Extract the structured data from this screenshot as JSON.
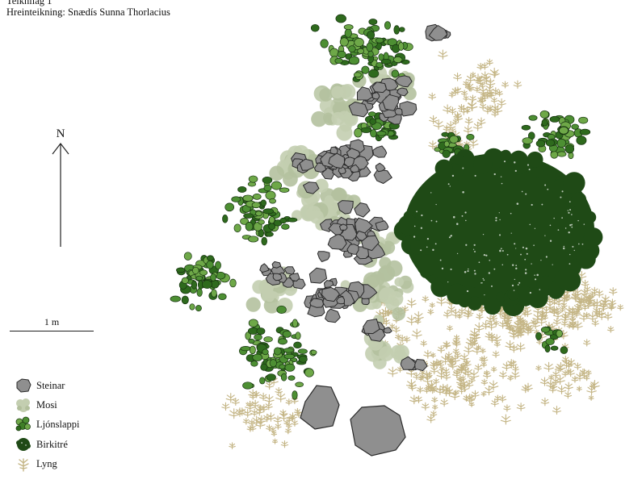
{
  "header": {
    "lines": [
      "Teiknilag 1",
      "Hreinteikning: Snædís Sunna Thorlacius"
    ]
  },
  "compass": {
    "north_label": "N"
  },
  "scale": {
    "label": "1 m"
  },
  "legend": {
    "items": [
      {
        "key": "stone",
        "label": "Steinar",
        "color": "#8f8f8f"
      },
      {
        "key": "moss",
        "label": "Mosi",
        "color": "#c3ceb0"
      },
      {
        "key": "clubmoss",
        "label": "Ljónslappi",
        "color": "#3f8a2a"
      },
      {
        "key": "birch",
        "label": "Birkitré",
        "color": "#1f4a16"
      },
      {
        "key": "heather",
        "label": "Lyng",
        "color": "#c4b585"
      }
    ]
  },
  "colors": {
    "stone_fill": "#8f8f8f",
    "stone_stroke": "#2a2a2a",
    "moss": "#c3ceb0",
    "clubmoss_light": "#6ea848",
    "clubmoss_dark": "#2e6a1d",
    "birch": "#1f4a16",
    "heather": "#c4b585"
  }
}
